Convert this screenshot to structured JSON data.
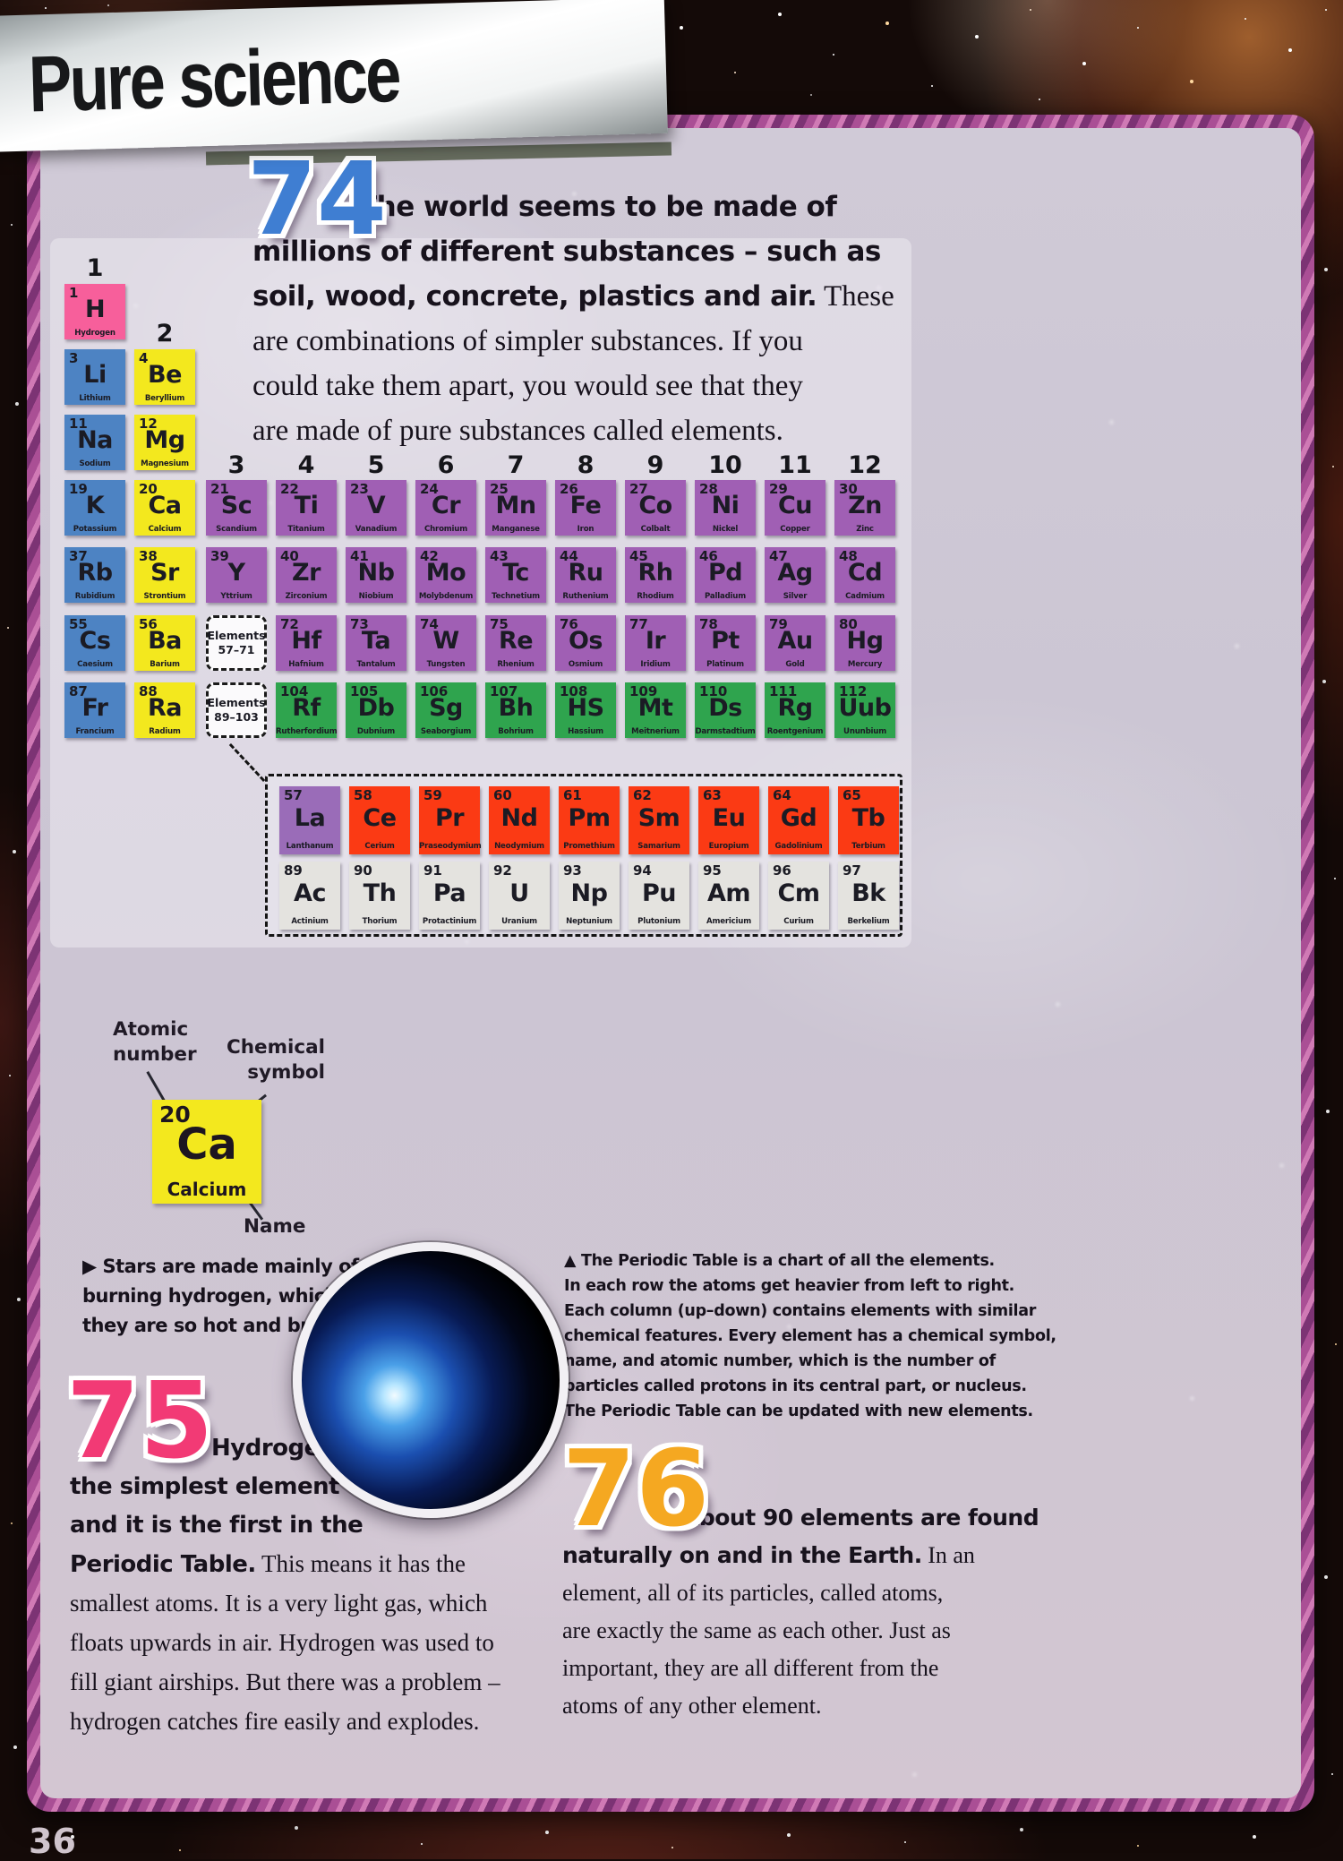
{
  "page": {
    "title": "Pure science",
    "page_number": "36"
  },
  "facts": {
    "f74": {
      "number": "74",
      "color": "#3f7ed2",
      "bold": "The world seems to be made of\nmillions of different substances – such as\nsoil, wood, concrete, plastics and air.",
      "regular": " These\nare combinations of simpler substances. If you\ncould take them apart, you would see that they\nare made of pure substances called elements."
    },
    "f75": {
      "number": "75",
      "color": "#f23a75",
      "bold": "Hydrogen is\nthe simplest element\nand it is the first in the\nPeriodic Table.",
      "regular": " This means it has the\nsmallest atoms. It is a very light gas, which\nfloats upwards in air. Hydrogen was used to\nfill giant airships. But there was a problem –\nhydrogen catches fire easily and explodes."
    },
    "f76": {
      "number": "76",
      "color": "#f5a821",
      "bold": "About 90 elements are found\nnaturally on and in the Earth.",
      "regular": " In an\nelement, all of its particles, called atoms,\nare exactly the same as each other. Just as\nimportant, they are all different from the\natoms of any other element."
    }
  },
  "captions": {
    "stars": "▶ Stars are made mainly of\nburning hydrogen, which is why\nthey are so hot and bright.",
    "periodic": "▲ The Periodic Table is a chart of all the elements.\nIn each row the atoms get heavier from left to right.\nEach column (up–down) contains elements with similar\nchemical features. Every element has a chemical symbol,\nname, and atomic number, which is the number of\nparticles called protons in its central part, or nucleus.\nThe Periodic Table can be updated with new elements."
  },
  "example": {
    "atomic_number_label": "Atomic\nnumber",
    "chemical_symbol_label": "Chemical\nsymbol",
    "name_label": "Name",
    "number": "20",
    "symbol": "Ca",
    "name": "Calcium"
  },
  "periodic_table": {
    "group_headers": [
      "1",
      "2",
      "3",
      "4",
      "5",
      "6",
      "7",
      "8",
      "9",
      "10",
      "11",
      "12"
    ],
    "categories": {
      "hydrogen": "#f75f9b",
      "alkali": "#4d83c3",
      "alkaline": "#f3e81e",
      "transition": "#a05fb4",
      "superheavy": "#2fa44e",
      "lanthanum": "#9a6cb8",
      "lanthanide": "#fb3a14",
      "actinide": "#e4e3df"
    },
    "placeholders": [
      {
        "label": "Elements\n57–71",
        "row": 6,
        "col": 3
      },
      {
        "label": "Elements\n89–103",
        "row": 7,
        "col": 3
      }
    ],
    "elements": [
      {
        "n": 1,
        "s": "H",
        "name": "Hydrogen",
        "cat": "hydrogen",
        "row": 1,
        "col": 1
      },
      {
        "n": 3,
        "s": "Li",
        "name": "Lithium",
        "cat": "alkali",
        "row": 2,
        "col": 1
      },
      {
        "n": 4,
        "s": "Be",
        "name": "Beryllium",
        "cat": "alkaline",
        "row": 2,
        "col": 2
      },
      {
        "n": 11,
        "s": "Na",
        "name": "Sodium",
        "cat": "alkali",
        "row": 3,
        "col": 1
      },
      {
        "n": 12,
        "s": "Mg",
        "name": "Magnesium",
        "cat": "alkaline",
        "row": 3,
        "col": 2
      },
      {
        "n": 19,
        "s": "K",
        "name": "Potassium",
        "cat": "alkali",
        "row": 4,
        "col": 1
      },
      {
        "n": 20,
        "s": "Ca",
        "name": "Calcium",
        "cat": "alkaline",
        "row": 4,
        "col": 2
      },
      {
        "n": 21,
        "s": "Sc",
        "name": "Scandium",
        "cat": "transition",
        "row": 4,
        "col": 3
      },
      {
        "n": 22,
        "s": "Ti",
        "name": "Titanium",
        "cat": "transition",
        "row": 4,
        "col": 4
      },
      {
        "n": 23,
        "s": "V",
        "name": "Vanadium",
        "cat": "transition",
        "row": 4,
        "col": 5
      },
      {
        "n": 24,
        "s": "Cr",
        "name": "Chromium",
        "cat": "transition",
        "row": 4,
        "col": 6
      },
      {
        "n": 25,
        "s": "Mn",
        "name": "Manganese",
        "cat": "transition",
        "row": 4,
        "col": 7
      },
      {
        "n": 26,
        "s": "Fe",
        "name": "Iron",
        "cat": "transition",
        "row": 4,
        "col": 8
      },
      {
        "n": 27,
        "s": "Co",
        "name": "Colbalt",
        "cat": "transition",
        "row": 4,
        "col": 9
      },
      {
        "n": 28,
        "s": "Ni",
        "name": "Nickel",
        "cat": "transition",
        "row": 4,
        "col": 10
      },
      {
        "n": 29,
        "s": "Cu",
        "name": "Copper",
        "cat": "transition",
        "row": 4,
        "col": 11
      },
      {
        "n": 30,
        "s": "Zn",
        "name": "Zinc",
        "cat": "transition",
        "row": 4,
        "col": 12
      },
      {
        "n": 37,
        "s": "Rb",
        "name": "Rubidium",
        "cat": "alkali",
        "row": 5,
        "col": 1
      },
      {
        "n": 38,
        "s": "Sr",
        "name": "Strontium",
        "cat": "alkaline",
        "row": 5,
        "col": 2
      },
      {
        "n": 39,
        "s": "Y",
        "name": "Yttrium",
        "cat": "transition",
        "row": 5,
        "col": 3
      },
      {
        "n": 40,
        "s": "Zr",
        "name": "Zirconium",
        "cat": "transition",
        "row": 5,
        "col": 4
      },
      {
        "n": 41,
        "s": "Nb",
        "name": "Niobium",
        "cat": "transition",
        "row": 5,
        "col": 5
      },
      {
        "n": 42,
        "s": "Mo",
        "name": "Molybdenum",
        "cat": "transition",
        "row": 5,
        "col": 6
      },
      {
        "n": 43,
        "s": "Tc",
        "name": "Technetium",
        "cat": "transition",
        "row": 5,
        "col": 7
      },
      {
        "n": 44,
        "s": "Ru",
        "name": "Ruthenium",
        "cat": "transition",
        "row": 5,
        "col": 8
      },
      {
        "n": 45,
        "s": "Rh",
        "name": "Rhodium",
        "cat": "transition",
        "row": 5,
        "col": 9
      },
      {
        "n": 46,
        "s": "Pd",
        "name": "Palladium",
        "cat": "transition",
        "row": 5,
        "col": 10
      },
      {
        "n": 47,
        "s": "Ag",
        "name": "Silver",
        "cat": "transition",
        "row": 5,
        "col": 11
      },
      {
        "n": 48,
        "s": "Cd",
        "name": "Cadmium",
        "cat": "transition",
        "row": 5,
        "col": 12
      },
      {
        "n": 55,
        "s": "Cs",
        "name": "Caesium",
        "cat": "alkali",
        "row": 6,
        "col": 1
      },
      {
        "n": 56,
        "s": "Ba",
        "name": "Barium",
        "cat": "alkaline",
        "row": 6,
        "col": 2
      },
      {
        "n": 72,
        "s": "Hf",
        "name": "Hafnium",
        "cat": "transition",
        "row": 6,
        "col": 4
      },
      {
        "n": 73,
        "s": "Ta",
        "name": "Tantalum",
        "cat": "transition",
        "row": 6,
        "col": 5
      },
      {
        "n": 74,
        "s": "W",
        "name": "Tungsten",
        "cat": "transition",
        "row": 6,
        "col": 6
      },
      {
        "n": 75,
        "s": "Re",
        "name": "Rhenium",
        "cat": "transition",
        "row": 6,
        "col": 7
      },
      {
        "n": 76,
        "s": "Os",
        "name": "Osmium",
        "cat": "transition",
        "row": 6,
        "col": 8
      },
      {
        "n": 77,
        "s": "Ir",
        "name": "Iridium",
        "cat": "transition",
        "row": 6,
        "col": 9
      },
      {
        "n": 78,
        "s": "Pt",
        "name": "Platinum",
        "cat": "transition",
        "row": 6,
        "col": 10
      },
      {
        "n": 79,
        "s": "Au",
        "name": "Gold",
        "cat": "transition",
        "row": 6,
        "col": 11
      },
      {
        "n": 80,
        "s": "Hg",
        "name": "Mercury",
        "cat": "transition",
        "row": 6,
        "col": 12
      },
      {
        "n": 87,
        "s": "Fr",
        "name": "Francium",
        "cat": "alkali",
        "row": 7,
        "col": 1
      },
      {
        "n": 88,
        "s": "Ra",
        "name": "Radium",
        "cat": "alkaline",
        "row": 7,
        "col": 2
      },
      {
        "n": 104,
        "s": "Rf",
        "name": "Rutherfordium",
        "cat": "superheavy",
        "row": 7,
        "col": 4
      },
      {
        "n": 105,
        "s": "Db",
        "name": "Dubnium",
        "cat": "superheavy",
        "row": 7,
        "col": 5
      },
      {
        "n": 106,
        "s": "Sg",
        "name": "Seaborgium",
        "cat": "superheavy",
        "row": 7,
        "col": 6
      },
      {
        "n": 107,
        "s": "Bh",
        "name": "Bohrium",
        "cat": "superheavy",
        "row": 7,
        "col": 7
      },
      {
        "n": 108,
        "s": "HS",
        "name": "Hassium",
        "cat": "superheavy",
        "row": 7,
        "col": 8
      },
      {
        "n": 109,
        "s": "Mt",
        "name": "Meitnerium",
        "cat": "superheavy",
        "row": 7,
        "col": 9
      },
      {
        "n": 110,
        "s": "Ds",
        "name": "Darmstadtium",
        "cat": "superheavy",
        "row": 7,
        "col": 10
      },
      {
        "n": 111,
        "s": "Rg",
        "name": "Roentgenium",
        "cat": "superheavy",
        "row": 7,
        "col": 11
      },
      {
        "n": 112,
        "s": "Uub",
        "name": "Ununbium",
        "cat": "superheavy",
        "row": 7,
        "col": 12
      },
      {
        "n": 57,
        "s": "La",
        "name": "Lanthanum",
        "cat": "lanthanum",
        "row": "L",
        "col": 0
      },
      {
        "n": 58,
        "s": "Ce",
        "name": "Cerium",
        "cat": "lanthanide",
        "row": "L",
        "col": 1
      },
      {
        "n": 59,
        "s": "Pr",
        "name": "Praseodymium",
        "cat": "lanthanide",
        "row": "L",
        "col": 2
      },
      {
        "n": 60,
        "s": "Nd",
        "name": "Neodymium",
        "cat": "lanthanide",
        "row": "L",
        "col": 3
      },
      {
        "n": 61,
        "s": "Pm",
        "name": "Promethium",
        "cat": "lanthanide",
        "row": "L",
        "col": 4
      },
      {
        "n": 62,
        "s": "Sm",
        "name": "Samarium",
        "cat": "lanthanide",
        "row": "L",
        "col": 5
      },
      {
        "n": 63,
        "s": "Eu",
        "name": "Europium",
        "cat": "lanthanide",
        "row": "L",
        "col": 6
      },
      {
        "n": 64,
        "s": "Gd",
        "name": "Gadolinium",
        "cat": "lanthanide",
        "row": "L",
        "col": 7
      },
      {
        "n": 65,
        "s": "Tb",
        "name": "Terbium",
        "cat": "lanthanide",
        "row": "L",
        "col": 8
      },
      {
        "n": 89,
        "s": "Ac",
        "name": "Actinium",
        "cat": "actinide",
        "row": "A",
        "col": 0
      },
      {
        "n": 90,
        "s": "Th",
        "name": "Thorium",
        "cat": "actinide",
        "row": "A",
        "col": 1
      },
      {
        "n": 91,
        "s": "Pa",
        "name": "Protactinium",
        "cat": "actinide",
        "row": "A",
        "col": 2
      },
      {
        "n": 92,
        "s": "U",
        "name": "Uranium",
        "cat": "actinide",
        "row": "A",
        "col": 3
      },
      {
        "n": 93,
        "s": "Np",
        "name": "Neptunium",
        "cat": "actinide",
        "row": "A",
        "col": 4
      },
      {
        "n": 94,
        "s": "Pu",
        "name": "Plutonium",
        "cat": "actinide",
        "row": "A",
        "col": 5
      },
      {
        "n": 95,
        "s": "Am",
        "name": "Americium",
        "cat": "actinide",
        "row": "A",
        "col": 6
      },
      {
        "n": 96,
        "s": "Cm",
        "name": "Curium",
        "cat": "actinide",
        "row": "A",
        "col": 7
      },
      {
        "n": 97,
        "s": "Bk",
        "name": "Berkelium",
        "cat": "actinide",
        "row": "A",
        "col": 8
      }
    ]
  }
}
